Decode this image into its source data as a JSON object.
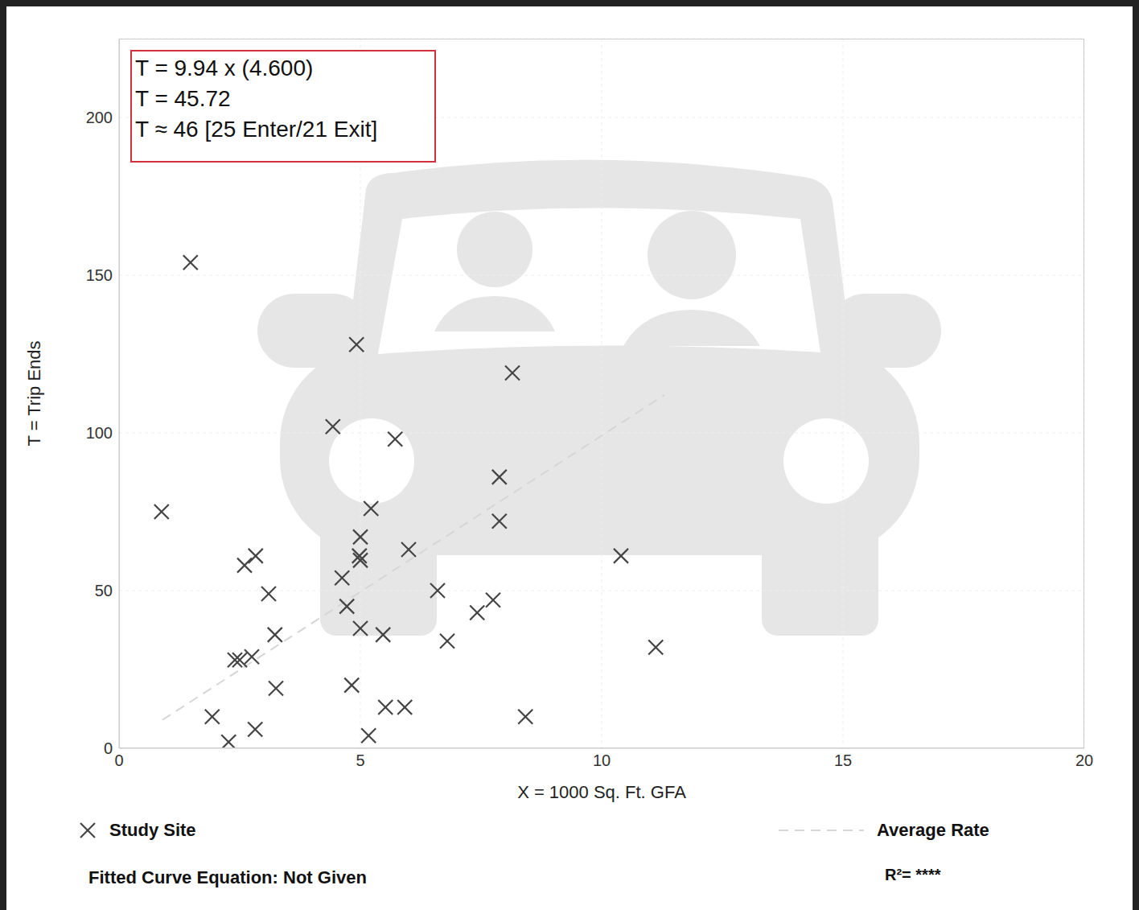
{
  "chart_data": {
    "type": "scatter",
    "x_label": "X = 1000 Sq. Ft. GFA",
    "y_label": "T = Trip Ends",
    "xlim": [
      0,
      20
    ],
    "xticks": [
      0,
      5,
      10,
      15,
      20
    ],
    "ylim": [
      0,
      225
    ],
    "yticks": [
      0,
      50,
      100,
      150,
      200
    ],
    "grid": true,
    "legend": "bottom",
    "annotations": [
      "T = 9.94 x (4.600)",
      "T = 45.72",
      "T ≈ 46 [25 Enter/21 Exit]"
    ],
    "fitted_curve": "Fitted Curve Equation: Not Given",
    "r_squared": "R²= ****",
    "series": [
      {
        "name": "Study Site",
        "type": "scatter",
        "marker": "x",
        "color": "#444444",
        "x": [
          1.48,
          0.88,
          4.92,
          8.15,
          4.43,
          5.72,
          7.88,
          5.22,
          7.88,
          5.0,
          2.83,
          2.6,
          4.98,
          5.0,
          6.0,
          10.4,
          4.62,
          3.1,
          6.6,
          4.72,
          7.75,
          7.42,
          5.0,
          3.23,
          5.47,
          6.8,
          11.12,
          2.4,
          2.5,
          2.75,
          3.25,
          4.82,
          5.52,
          5.92,
          1.93,
          8.42,
          2.82,
          2.27,
          5.17
        ],
        "y": [
          154,
          75,
          128,
          119,
          102,
          98,
          86,
          76,
          72,
          67,
          61,
          58,
          61,
          59.6,
          63,
          61,
          54,
          49,
          50,
          45,
          47,
          43,
          38,
          36,
          36,
          34,
          32,
          28,
          28,
          29,
          19,
          20,
          13,
          13,
          10,
          10,
          6,
          2,
          4
        ]
      },
      {
        "name": "Average Rate",
        "type": "line",
        "line_style": "dashed",
        "color": "#d6d6d6",
        "x": [
          0.9,
          11.3
        ],
        "y": [
          9,
          112
        ]
      }
    ]
  }
}
